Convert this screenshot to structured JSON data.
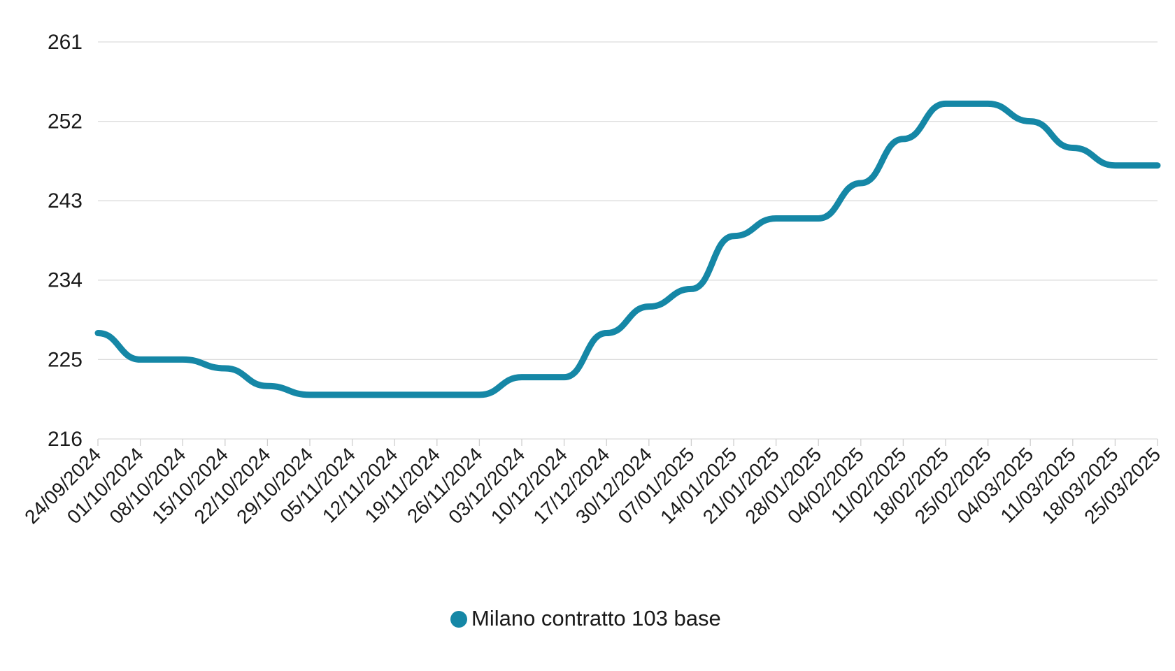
{
  "colors": {
    "series": "#1587a6",
    "grid": "#dcdcdc",
    "text": "#1a1a1a"
  },
  "chart_data": {
    "type": "line",
    "title": "",
    "xlabel": "",
    "ylabel": "",
    "ylim": [
      216,
      261
    ],
    "yticks": [
      216,
      225,
      234,
      243,
      252,
      261
    ],
    "grid": true,
    "legend_position": "bottom-center",
    "categories": [
      "24/09/2024",
      "01/10/2024",
      "08/10/2024",
      "15/10/2024",
      "22/10/2024",
      "29/10/2024",
      "05/11/2024",
      "12/11/2024",
      "19/11/2024",
      "26/11/2024",
      "03/12/2024",
      "10/12/2024",
      "17/12/2024",
      "30/12/2024",
      "07/01/2025",
      "14/01/2025",
      "21/01/2025",
      "28/01/2025",
      "04/02/2025",
      "11/02/2025",
      "18/02/2025",
      "25/02/2025",
      "04/03/2025",
      "11/03/2025",
      "18/03/2025",
      "25/03/2025"
    ],
    "series": [
      {
        "name": "Milano contratto 103 base",
        "color": "#1587a6",
        "values": [
          228,
          225,
          225,
          224,
          222,
          221,
          221,
          221,
          221,
          221,
          223,
          223,
          228,
          231,
          233,
          239,
          241,
          241,
          245,
          250,
          254,
          254,
          252,
          249,
          247,
          247
        ]
      }
    ]
  }
}
